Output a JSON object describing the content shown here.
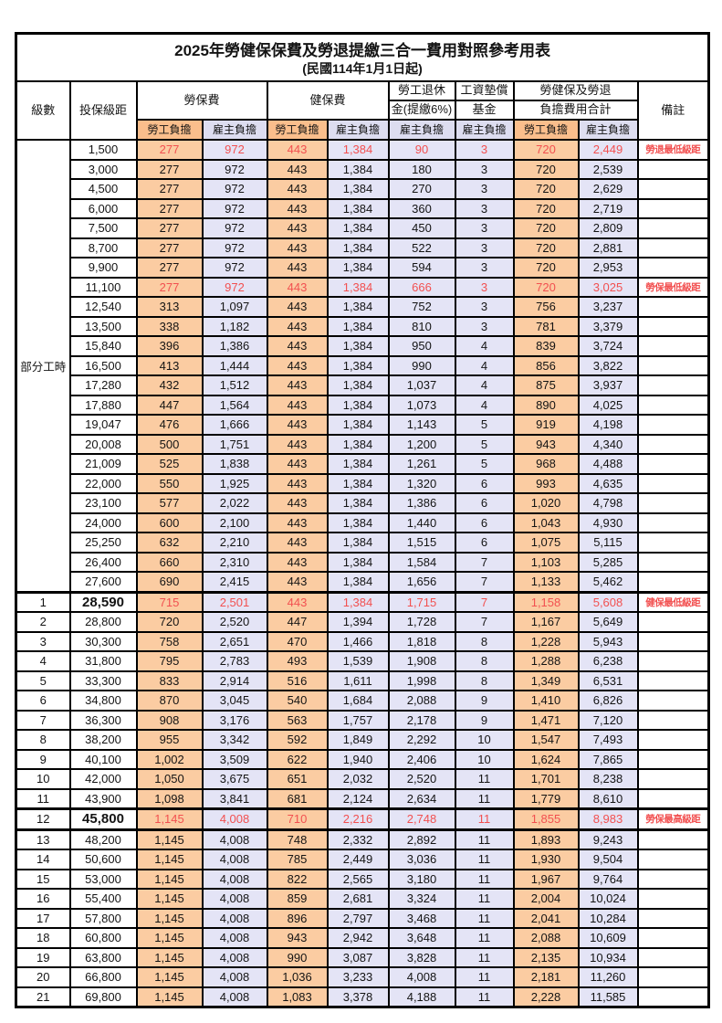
{
  "page": {
    "title_line1": "2025年勞健保保費及勞退提繳三合一費用對照參考用表",
    "title_line2": "(民國114年1月1日起)"
  },
  "header": {
    "level": "級數",
    "salary": "投保級距",
    "labor": "勞保費",
    "health": "健保費",
    "pension_line1": "勞工退休",
    "pension_line2": "金(提繳6%)",
    "wage_fund_line1": "工資墊償",
    "wage_fund_line2": "基金",
    "total_line1": "勞健保及勞退",
    "total_line2": "負擔費用合計",
    "note": "備註",
    "employee": "勞工負擔",
    "employer": "雇主負擔"
  },
  "part_time_label": "部分工時",
  "part_time_row_count": 23,
  "colors": {
    "employee_header_bg": "#FABE8C",
    "employer_header_bg": "#DDDDF0",
    "employee_cell_bg": "#FBCCA2",
    "employer_cell_bg": "#E4E4F6",
    "highlight_red": "#F25050",
    "border": "#000000"
  },
  "rows": [
    {
      "level": "",
      "salary": "1,500",
      "v": [
        "277",
        "972",
        "443",
        "1,384",
        "90",
        "3",
        "720",
        "2,449"
      ],
      "note": "勞退最低級距",
      "red": true,
      "bold": false,
      "thick": false
    },
    {
      "level": "",
      "salary": "3,000",
      "v": [
        "277",
        "972",
        "443",
        "1,384",
        "180",
        "3",
        "720",
        "2,539"
      ],
      "note": "",
      "red": false,
      "bold": false,
      "thick": false
    },
    {
      "level": "",
      "salary": "4,500",
      "v": [
        "277",
        "972",
        "443",
        "1,384",
        "270",
        "3",
        "720",
        "2,629"
      ],
      "note": "",
      "red": false,
      "bold": false,
      "thick": false
    },
    {
      "level": "",
      "salary": "6,000",
      "v": [
        "277",
        "972",
        "443",
        "1,384",
        "360",
        "3",
        "720",
        "2,719"
      ],
      "note": "",
      "red": false,
      "bold": false,
      "thick": false
    },
    {
      "level": "",
      "salary": "7,500",
      "v": [
        "277",
        "972",
        "443",
        "1,384",
        "450",
        "3",
        "720",
        "2,809"
      ],
      "note": "",
      "red": false,
      "bold": false,
      "thick": false
    },
    {
      "level": "",
      "salary": "8,700",
      "v": [
        "277",
        "972",
        "443",
        "1,384",
        "522",
        "3",
        "720",
        "2,881"
      ],
      "note": "",
      "red": false,
      "bold": false,
      "thick": false
    },
    {
      "level": "",
      "salary": "9,900",
      "v": [
        "277",
        "972",
        "443",
        "1,384",
        "594",
        "3",
        "720",
        "2,953"
      ],
      "note": "",
      "red": false,
      "bold": false,
      "thick": false
    },
    {
      "level": "",
      "salary": "11,100",
      "v": [
        "277",
        "972",
        "443",
        "1,384",
        "666",
        "3",
        "720",
        "3,025"
      ],
      "note": "勞保最低級距",
      "red": true,
      "bold": false,
      "thick": false
    },
    {
      "level": "",
      "salary": "12,540",
      "v": [
        "313",
        "1,097",
        "443",
        "1,384",
        "752",
        "3",
        "756",
        "3,237"
      ],
      "note": "",
      "red": false,
      "bold": false,
      "thick": false
    },
    {
      "level": "",
      "salary": "13,500",
      "v": [
        "338",
        "1,182",
        "443",
        "1,384",
        "810",
        "3",
        "781",
        "3,379"
      ],
      "note": "",
      "red": false,
      "bold": false,
      "thick": false
    },
    {
      "level": "",
      "salary": "15,840",
      "v": [
        "396",
        "1,386",
        "443",
        "1,384",
        "950",
        "4",
        "839",
        "3,724"
      ],
      "note": "",
      "red": false,
      "bold": false,
      "thick": false
    },
    {
      "level": "",
      "salary": "16,500",
      "v": [
        "413",
        "1,444",
        "443",
        "1,384",
        "990",
        "4",
        "856",
        "3,822"
      ],
      "note": "",
      "red": false,
      "bold": false,
      "thick": false
    },
    {
      "level": "",
      "salary": "17,280",
      "v": [
        "432",
        "1,512",
        "443",
        "1,384",
        "1,037",
        "4",
        "875",
        "3,937"
      ],
      "note": "",
      "red": false,
      "bold": false,
      "thick": false
    },
    {
      "level": "",
      "salary": "17,880",
      "v": [
        "447",
        "1,564",
        "443",
        "1,384",
        "1,073",
        "4",
        "890",
        "4,025"
      ],
      "note": "",
      "red": false,
      "bold": false,
      "thick": false
    },
    {
      "level": "",
      "salary": "19,047",
      "v": [
        "476",
        "1,666",
        "443",
        "1,384",
        "1,143",
        "5",
        "919",
        "4,198"
      ],
      "note": "",
      "red": false,
      "bold": false,
      "thick": false
    },
    {
      "level": "",
      "salary": "20,008",
      "v": [
        "500",
        "1,751",
        "443",
        "1,384",
        "1,200",
        "5",
        "943",
        "4,340"
      ],
      "note": "",
      "red": false,
      "bold": false,
      "thick": false
    },
    {
      "level": "",
      "salary": "21,009",
      "v": [
        "525",
        "1,838",
        "443",
        "1,384",
        "1,261",
        "5",
        "968",
        "4,488"
      ],
      "note": "",
      "red": false,
      "bold": false,
      "thick": false
    },
    {
      "level": "",
      "salary": "22,000",
      "v": [
        "550",
        "1,925",
        "443",
        "1,384",
        "1,320",
        "6",
        "993",
        "4,635"
      ],
      "note": "",
      "red": false,
      "bold": false,
      "thick": false
    },
    {
      "level": "",
      "salary": "23,100",
      "v": [
        "577",
        "2,022",
        "443",
        "1,384",
        "1,386",
        "6",
        "1,020",
        "4,798"
      ],
      "note": "",
      "red": false,
      "bold": false,
      "thick": false
    },
    {
      "level": "",
      "salary": "24,000",
      "v": [
        "600",
        "2,100",
        "443",
        "1,384",
        "1,440",
        "6",
        "1,043",
        "4,930"
      ],
      "note": "",
      "red": false,
      "bold": false,
      "thick": false
    },
    {
      "level": "",
      "salary": "25,250",
      "v": [
        "632",
        "2,210",
        "443",
        "1,384",
        "1,515",
        "6",
        "1,075",
        "5,115"
      ],
      "note": "",
      "red": false,
      "bold": false,
      "thick": false
    },
    {
      "level": "",
      "salary": "26,400",
      "v": [
        "660",
        "2,310",
        "443",
        "1,384",
        "1,584",
        "7",
        "1,103",
        "5,285"
      ],
      "note": "",
      "red": false,
      "bold": false,
      "thick": false
    },
    {
      "level": "",
      "salary": "27,600",
      "v": [
        "690",
        "2,415",
        "443",
        "1,384",
        "1,656",
        "7",
        "1,133",
        "5,462"
      ],
      "note": "",
      "red": false,
      "bold": false,
      "thick": false
    },
    {
      "level": "1",
      "salary": "28,590",
      "v": [
        "715",
        "2,501",
        "443",
        "1,384",
        "1,715",
        "7",
        "1,158",
        "5,608"
      ],
      "note": "健保最低級距",
      "red": true,
      "bold": true,
      "thick": true
    },
    {
      "level": "2",
      "salary": "28,800",
      "v": [
        "720",
        "2,520",
        "447",
        "1,394",
        "1,728",
        "7",
        "1,167",
        "5,649"
      ],
      "note": "",
      "red": false,
      "bold": false,
      "thick": false
    },
    {
      "level": "3",
      "salary": "30,300",
      "v": [
        "758",
        "2,651",
        "470",
        "1,466",
        "1,818",
        "8",
        "1,228",
        "5,943"
      ],
      "note": "",
      "red": false,
      "bold": false,
      "thick": false
    },
    {
      "level": "4",
      "salary": "31,800",
      "v": [
        "795",
        "2,783",
        "493",
        "1,539",
        "1,908",
        "8",
        "1,288",
        "6,238"
      ],
      "note": "",
      "red": false,
      "bold": false,
      "thick": false
    },
    {
      "level": "5",
      "salary": "33,300",
      "v": [
        "833",
        "2,914",
        "516",
        "1,611",
        "1,998",
        "8",
        "1,349",
        "6,531"
      ],
      "note": "",
      "red": false,
      "bold": false,
      "thick": false
    },
    {
      "level": "6",
      "salary": "34,800",
      "v": [
        "870",
        "3,045",
        "540",
        "1,684",
        "2,088",
        "9",
        "1,410",
        "6,826"
      ],
      "note": "",
      "red": false,
      "bold": false,
      "thick": false
    },
    {
      "level": "7",
      "salary": "36,300",
      "v": [
        "908",
        "3,176",
        "563",
        "1,757",
        "2,178",
        "9",
        "1,471",
        "7,120"
      ],
      "note": "",
      "red": false,
      "bold": false,
      "thick": false
    },
    {
      "level": "8",
      "salary": "38,200",
      "v": [
        "955",
        "3,342",
        "592",
        "1,849",
        "2,292",
        "10",
        "1,547",
        "7,493"
      ],
      "note": "",
      "red": false,
      "bold": false,
      "thick": false
    },
    {
      "level": "9",
      "salary": "40,100",
      "v": [
        "1,002",
        "3,509",
        "622",
        "1,940",
        "2,406",
        "10",
        "1,624",
        "7,865"
      ],
      "note": "",
      "red": false,
      "bold": false,
      "thick": false
    },
    {
      "level": "10",
      "salary": "42,000",
      "v": [
        "1,050",
        "3,675",
        "651",
        "2,032",
        "2,520",
        "11",
        "1,701",
        "8,238"
      ],
      "note": "",
      "red": false,
      "bold": false,
      "thick": false
    },
    {
      "level": "11",
      "salary": "43,900",
      "v": [
        "1,098",
        "3,841",
        "681",
        "2,124",
        "2,634",
        "11",
        "1,779",
        "8,610"
      ],
      "note": "",
      "red": false,
      "bold": false,
      "thick": false
    },
    {
      "level": "12",
      "salary": "45,800",
      "v": [
        "1,145",
        "4,008",
        "710",
        "2,216",
        "2,748",
        "11",
        "1,855",
        "8,983"
      ],
      "note": "勞保最高級距",
      "red": true,
      "bold": true,
      "thick": true
    },
    {
      "level": "13",
      "salary": "48,200",
      "v": [
        "1,145",
        "4,008",
        "748",
        "2,332",
        "2,892",
        "11",
        "1,893",
        "9,243"
      ],
      "note": "",
      "red": false,
      "bold": false,
      "thick": true
    },
    {
      "level": "14",
      "salary": "50,600",
      "v": [
        "1,145",
        "4,008",
        "785",
        "2,449",
        "3,036",
        "11",
        "1,930",
        "9,504"
      ],
      "note": "",
      "red": false,
      "bold": false,
      "thick": false
    },
    {
      "level": "15",
      "salary": "53,000",
      "v": [
        "1,145",
        "4,008",
        "822",
        "2,565",
        "3,180",
        "11",
        "1,967",
        "9,764"
      ],
      "note": "",
      "red": false,
      "bold": false,
      "thick": false
    },
    {
      "level": "16",
      "salary": "55,400",
      "v": [
        "1,145",
        "4,008",
        "859",
        "2,681",
        "3,324",
        "11",
        "2,004",
        "10,024"
      ],
      "note": "",
      "red": false,
      "bold": false,
      "thick": false
    },
    {
      "level": "17",
      "salary": "57,800",
      "v": [
        "1,145",
        "4,008",
        "896",
        "2,797",
        "3,468",
        "11",
        "2,041",
        "10,284"
      ],
      "note": "",
      "red": false,
      "bold": false,
      "thick": false
    },
    {
      "level": "18",
      "salary": "60,800",
      "v": [
        "1,145",
        "4,008",
        "943",
        "2,942",
        "3,648",
        "11",
        "2,088",
        "10,609"
      ],
      "note": "",
      "red": false,
      "bold": false,
      "thick": false
    },
    {
      "level": "19",
      "salary": "63,800",
      "v": [
        "1,145",
        "4,008",
        "990",
        "3,087",
        "3,828",
        "11",
        "2,135",
        "10,934"
      ],
      "note": "",
      "red": false,
      "bold": false,
      "thick": false
    },
    {
      "level": "20",
      "salary": "66,800",
      "v": [
        "1,145",
        "4,008",
        "1,036",
        "3,233",
        "4,008",
        "11",
        "2,181",
        "11,260"
      ],
      "note": "",
      "red": false,
      "bold": false,
      "thick": false
    },
    {
      "level": "21",
      "salary": "69,800",
      "v": [
        "1,145",
        "4,008",
        "1,083",
        "3,378",
        "4,188",
        "11",
        "2,228",
        "11,585"
      ],
      "note": "",
      "red": false,
      "bold": false,
      "thick": false
    }
  ]
}
